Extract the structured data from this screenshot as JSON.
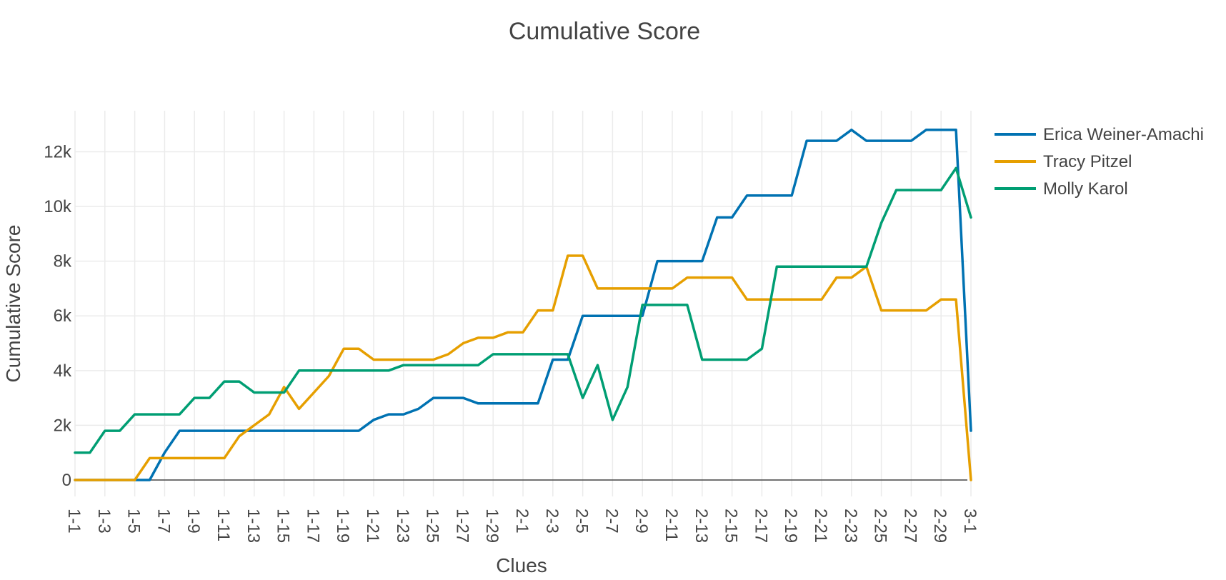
{
  "chart_data": {
    "type": "line",
    "title": "Cumulative Score",
    "xlabel": "Clues",
    "ylabel": "Cumulative Score",
    "ylim": [
      -600,
      13500
    ],
    "yticks": [
      0,
      2000,
      4000,
      6000,
      8000,
      10000,
      12000
    ],
    "ytick_labels": [
      "0",
      "2k",
      "4k",
      "6k",
      "8k",
      "10k",
      "12k"
    ],
    "grid": true,
    "legend_position": "top-right",
    "x": [
      "1-1",
      "1-2",
      "1-3",
      "1-4",
      "1-5",
      "1-6",
      "1-7",
      "1-8",
      "1-9",
      "1-10",
      "1-11",
      "1-12",
      "1-13",
      "1-14",
      "1-15",
      "1-16",
      "1-17",
      "1-18",
      "1-19",
      "1-20",
      "1-21",
      "1-22",
      "1-23",
      "1-24",
      "1-25",
      "1-26",
      "1-27",
      "1-28",
      "1-29",
      "1-30",
      "2-1",
      "2-2",
      "2-3",
      "2-4",
      "2-5",
      "2-6",
      "2-7",
      "2-8",
      "2-9",
      "2-10",
      "2-11",
      "2-12",
      "2-13",
      "2-14",
      "2-15",
      "2-16",
      "2-17",
      "2-18",
      "2-19",
      "2-20",
      "2-21",
      "2-22",
      "2-23",
      "2-24",
      "2-25",
      "2-26",
      "2-27",
      "2-28",
      "2-29",
      "2-30",
      "3-1"
    ],
    "xtick_labels": [
      "1-1",
      "1-3",
      "1-5",
      "1-7",
      "1-9",
      "1-11",
      "1-13",
      "1-15",
      "1-17",
      "1-19",
      "1-21",
      "1-23",
      "1-25",
      "1-27",
      "1-29",
      "2-1",
      "2-3",
      "2-5",
      "2-7",
      "2-9",
      "2-11",
      "2-13",
      "2-15",
      "2-17",
      "2-19",
      "2-21",
      "2-23",
      "2-25",
      "2-27",
      "2-29",
      "3-1"
    ],
    "series": [
      {
        "name": "Erica Weiner-Amachi",
        "color": "#0072b2",
        "values": [
          0,
          0,
          0,
          0,
          0,
          0,
          1000,
          1800,
          1800,
          1800,
          1800,
          1800,
          1800,
          1800,
          1800,
          1800,
          1800,
          1800,
          1800,
          1800,
          2200,
          2400,
          2400,
          2600,
          3000,
          3000,
          3000,
          2800,
          2800,
          2800,
          2800,
          2800,
          4400,
          4400,
          6000,
          6000,
          6000,
          6000,
          6000,
          8000,
          8000,
          8000,
          8000,
          9600,
          9600,
          10400,
          10400,
          10400,
          10400,
          12400,
          12400,
          12400,
          12800,
          12400,
          12400,
          12400,
          12400,
          12800,
          12800,
          12800,
          1800
        ]
      },
      {
        "name": "Tracy Pitzel",
        "color": "#e69f00",
        "values": [
          0,
          0,
          0,
          0,
          0,
          800,
          800,
          800,
          800,
          800,
          800,
          1600,
          2000,
          2400,
          3400,
          2600,
          3200,
          3800,
          4800,
          4800,
          4400,
          4400,
          4400,
          4400,
          4400,
          4600,
          5000,
          5200,
          5200,
          5400,
          5400,
          6200,
          6200,
          8200,
          8200,
          7000,
          7000,
          7000,
          7000,
          7000,
          7000,
          7400,
          7400,
          7400,
          7400,
          6600,
          6600,
          6600,
          6600,
          6600,
          6600,
          7400,
          7400,
          7800,
          6200,
          6200,
          6200,
          6200,
          6600,
          6600,
          0
        ]
      },
      {
        "name": "Molly Karol",
        "color": "#009e73",
        "values": [
          1000,
          1000,
          1800,
          1800,
          2400,
          2400,
          2400,
          2400,
          3000,
          3000,
          3600,
          3600,
          3200,
          3200,
          3200,
          4000,
          4000,
          4000,
          4000,
          4000,
          4000,
          4000,
          4200,
          4200,
          4200,
          4200,
          4200,
          4200,
          4600,
          4600,
          4600,
          4600,
          4600,
          4600,
          3000,
          4200,
          2200,
          3400,
          6400,
          6400,
          6400,
          6400,
          4400,
          4400,
          4400,
          4400,
          4800,
          7800,
          7800,
          7800,
          7800,
          7800,
          7800,
          7800,
          9400,
          10600,
          10600,
          10600,
          10600,
          11400,
          9600
        ]
      }
    ]
  }
}
